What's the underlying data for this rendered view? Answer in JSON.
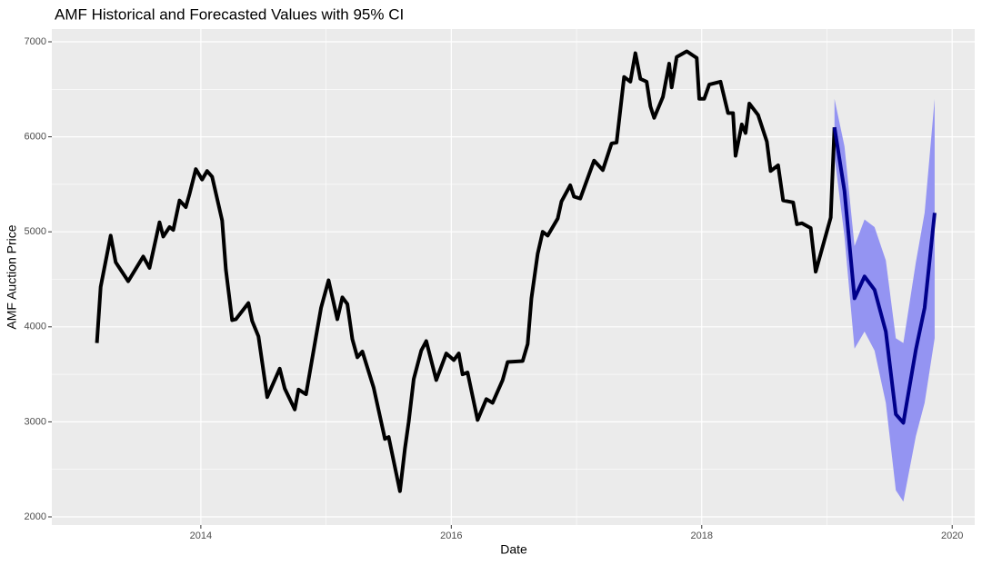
{
  "chart_data": {
    "type": "line",
    "title": "AMF Historical and Forecasted Values with 95% CI",
    "x_label": "Date",
    "y_label": "AMF Auction Price",
    "xlim": [
      2012.81,
      2020.18
    ],
    "ylim": [
      1914,
      7134
    ],
    "xticks": [
      2014,
      2016,
      2018,
      2020
    ],
    "yticks": [
      2000,
      3000,
      4000,
      5000,
      6000,
      7000
    ],
    "grid": true,
    "series": [
      {
        "color": "#000000",
        "x": [
          2013.17,
          2013.2,
          2013.28,
          2013.32,
          2013.42,
          2013.54,
          2013.59,
          2013.67,
          2013.7,
          2013.75,
          2013.78,
          2013.83,
          2013.88,
          2013.91,
          2013.96,
          2014.01,
          2014.05,
          2014.09,
          2014.17,
          2014.2,
          2014.25,
          2014.28,
          2014.38,
          2014.41,
          2014.46,
          2014.53,
          2014.63,
          2014.67,
          2014.75,
          2014.78,
          2014.84,
          2014.92,
          2014.96,
          2015.02,
          2015.09,
          2015.13,
          2015.17,
          2015.21,
          2015.25,
          2015.29,
          2015.38,
          2015.47,
          2015.5,
          2015.59,
          2015.63,
          2015.66,
          2015.7,
          2015.76,
          2015.8,
          2015.88,
          2015.96,
          2016.02,
          2016.06,
          2016.09,
          2016.13,
          2016.21,
          2016.28,
          2016.33,
          2016.41,
          2016.45,
          2016.57,
          2016.61,
          2016.64,
          2016.69,
          2016.73,
          2016.77,
          2016.85,
          2016.88,
          2016.95,
          2016.98,
          2017.03,
          2017.14,
          2017.21,
          2017.28,
          2017.32,
          2017.38,
          2017.43,
          2017.47,
          2017.51,
          2017.56,
          2017.59,
          2017.62,
          2017.69,
          2017.74,
          2017.76,
          2017.8,
          2017.88,
          2017.96,
          2017.98,
          2018.02,
          2018.06,
          2018.15,
          2018.21,
          2018.25,
          2018.27,
          2018.32,
          2018.35,
          2018.38,
          2018.45,
          2018.52,
          2018.55,
          2018.61,
          2018.65,
          2018.73,
          2018.76,
          2018.8,
          2018.87,
          2018.91,
          2019.03,
          2019.06
        ],
        "values": [
          3830,
          4420,
          4960,
          4680,
          4480,
          4740,
          4620,
          5100,
          4950,
          5050,
          5020,
          5330,
          5260,
          5400,
          5660,
          5550,
          5640,
          5580,
          5120,
          4600,
          4070,
          4080,
          4250,
          4060,
          3900,
          3260,
          3560,
          3350,
          3130,
          3340,
          3290,
          3900,
          4200,
          4490,
          4080,
          4310,
          4240,
          3870,
          3680,
          3740,
          3360,
          2820,
          2840,
          2270,
          2720,
          3000,
          3450,
          3750,
          3850,
          3440,
          3720,
          3650,
          3720,
          3500,
          3520,
          3020,
          3240,
          3200,
          3440,
          3630,
          3640,
          3820,
          4300,
          4770,
          5000,
          4960,
          5140,
          5320,
          5490,
          5370,
          5350,
          5750,
          5650,
          5930,
          5940,
          6630,
          6580,
          6880,
          6610,
          6580,
          6320,
          6200,
          6420,
          6770,
          6520,
          6840,
          6900,
          6830,
          6400,
          6400,
          6550,
          6580,
          6250,
          6250,
          5800,
          6130,
          6040,
          6350,
          6230,
          5950,
          5640,
          5700,
          5330,
          5310,
          5080,
          5090,
          5040,
          4580,
          5150,
          6100
        ]
      },
      {
        "color": "#00008b",
        "band_color": "#9494f2",
        "x": [
          2019.06,
          2019.14,
          2019.22,
          2019.3,
          2019.38,
          2019.47,
          2019.55,
          2019.61,
          2019.71,
          2019.78,
          2019.86
        ],
        "values": [
          6100,
          5430,
          4300,
          4530,
          4390,
          3950,
          3080,
          2990,
          3760,
          4200,
          5200
        ],
        "lower": [
          5800,
          4950,
          3770,
          3950,
          3750,
          3200,
          2280,
          2160,
          2850,
          3200,
          3880
        ],
        "upper": [
          6400,
          5900,
          4850,
          5130,
          5050,
          4700,
          3880,
          3830,
          4680,
          5200,
          6400
        ]
      }
    ]
  }
}
